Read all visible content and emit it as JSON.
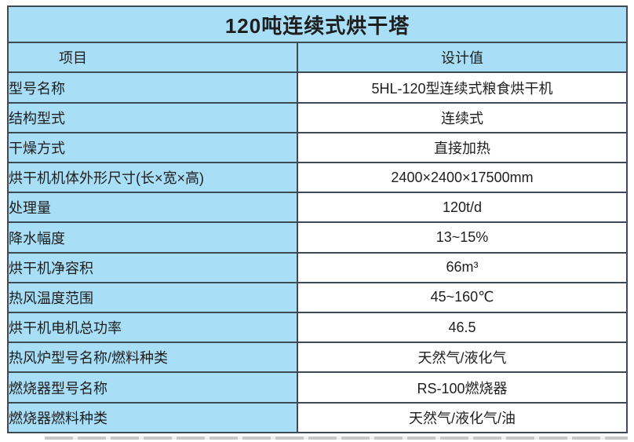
{
  "table": {
    "title": "120吨连续式烘干塔",
    "columns": {
      "item": "项目",
      "value": "设计值"
    },
    "rows": [
      {
        "item": "型号名称",
        "value": "5HL-120型连续式粮食烘干机"
      },
      {
        "item": "结构型式",
        "value": "连续式"
      },
      {
        "item": "干燥方式",
        "value": "直接加热"
      },
      {
        "item": "烘干机机体外形尺寸(长×宽×高)",
        "value": "2400×2400×17500mm"
      },
      {
        "item": "处理量",
        "value": "120t/d"
      },
      {
        "item": "降水幅度",
        "value": "13~15%"
      },
      {
        "item": "烘干机净容积",
        "value": "66m³"
      },
      {
        "item": "热风温度范围",
        "value": "45~160℃"
      },
      {
        "item": "烘干机电机总功率",
        "value": "46.5"
      },
      {
        "item": "热风炉型号名称/燃料种类",
        "value": "天然气/液化气"
      },
      {
        "item": "燃烧器型号名称",
        "value": "RS-100燃烧器"
      },
      {
        "item": "燃烧器燃料种类",
        "value": "天然气/液化气/油"
      }
    ],
    "colors": {
      "cell_blue": "#a8def6",
      "border": "#3e4a55",
      "value_bg": "#ffffff",
      "text": "#1e1e1e",
      "shadow": "#c7c7c7"
    }
  }
}
